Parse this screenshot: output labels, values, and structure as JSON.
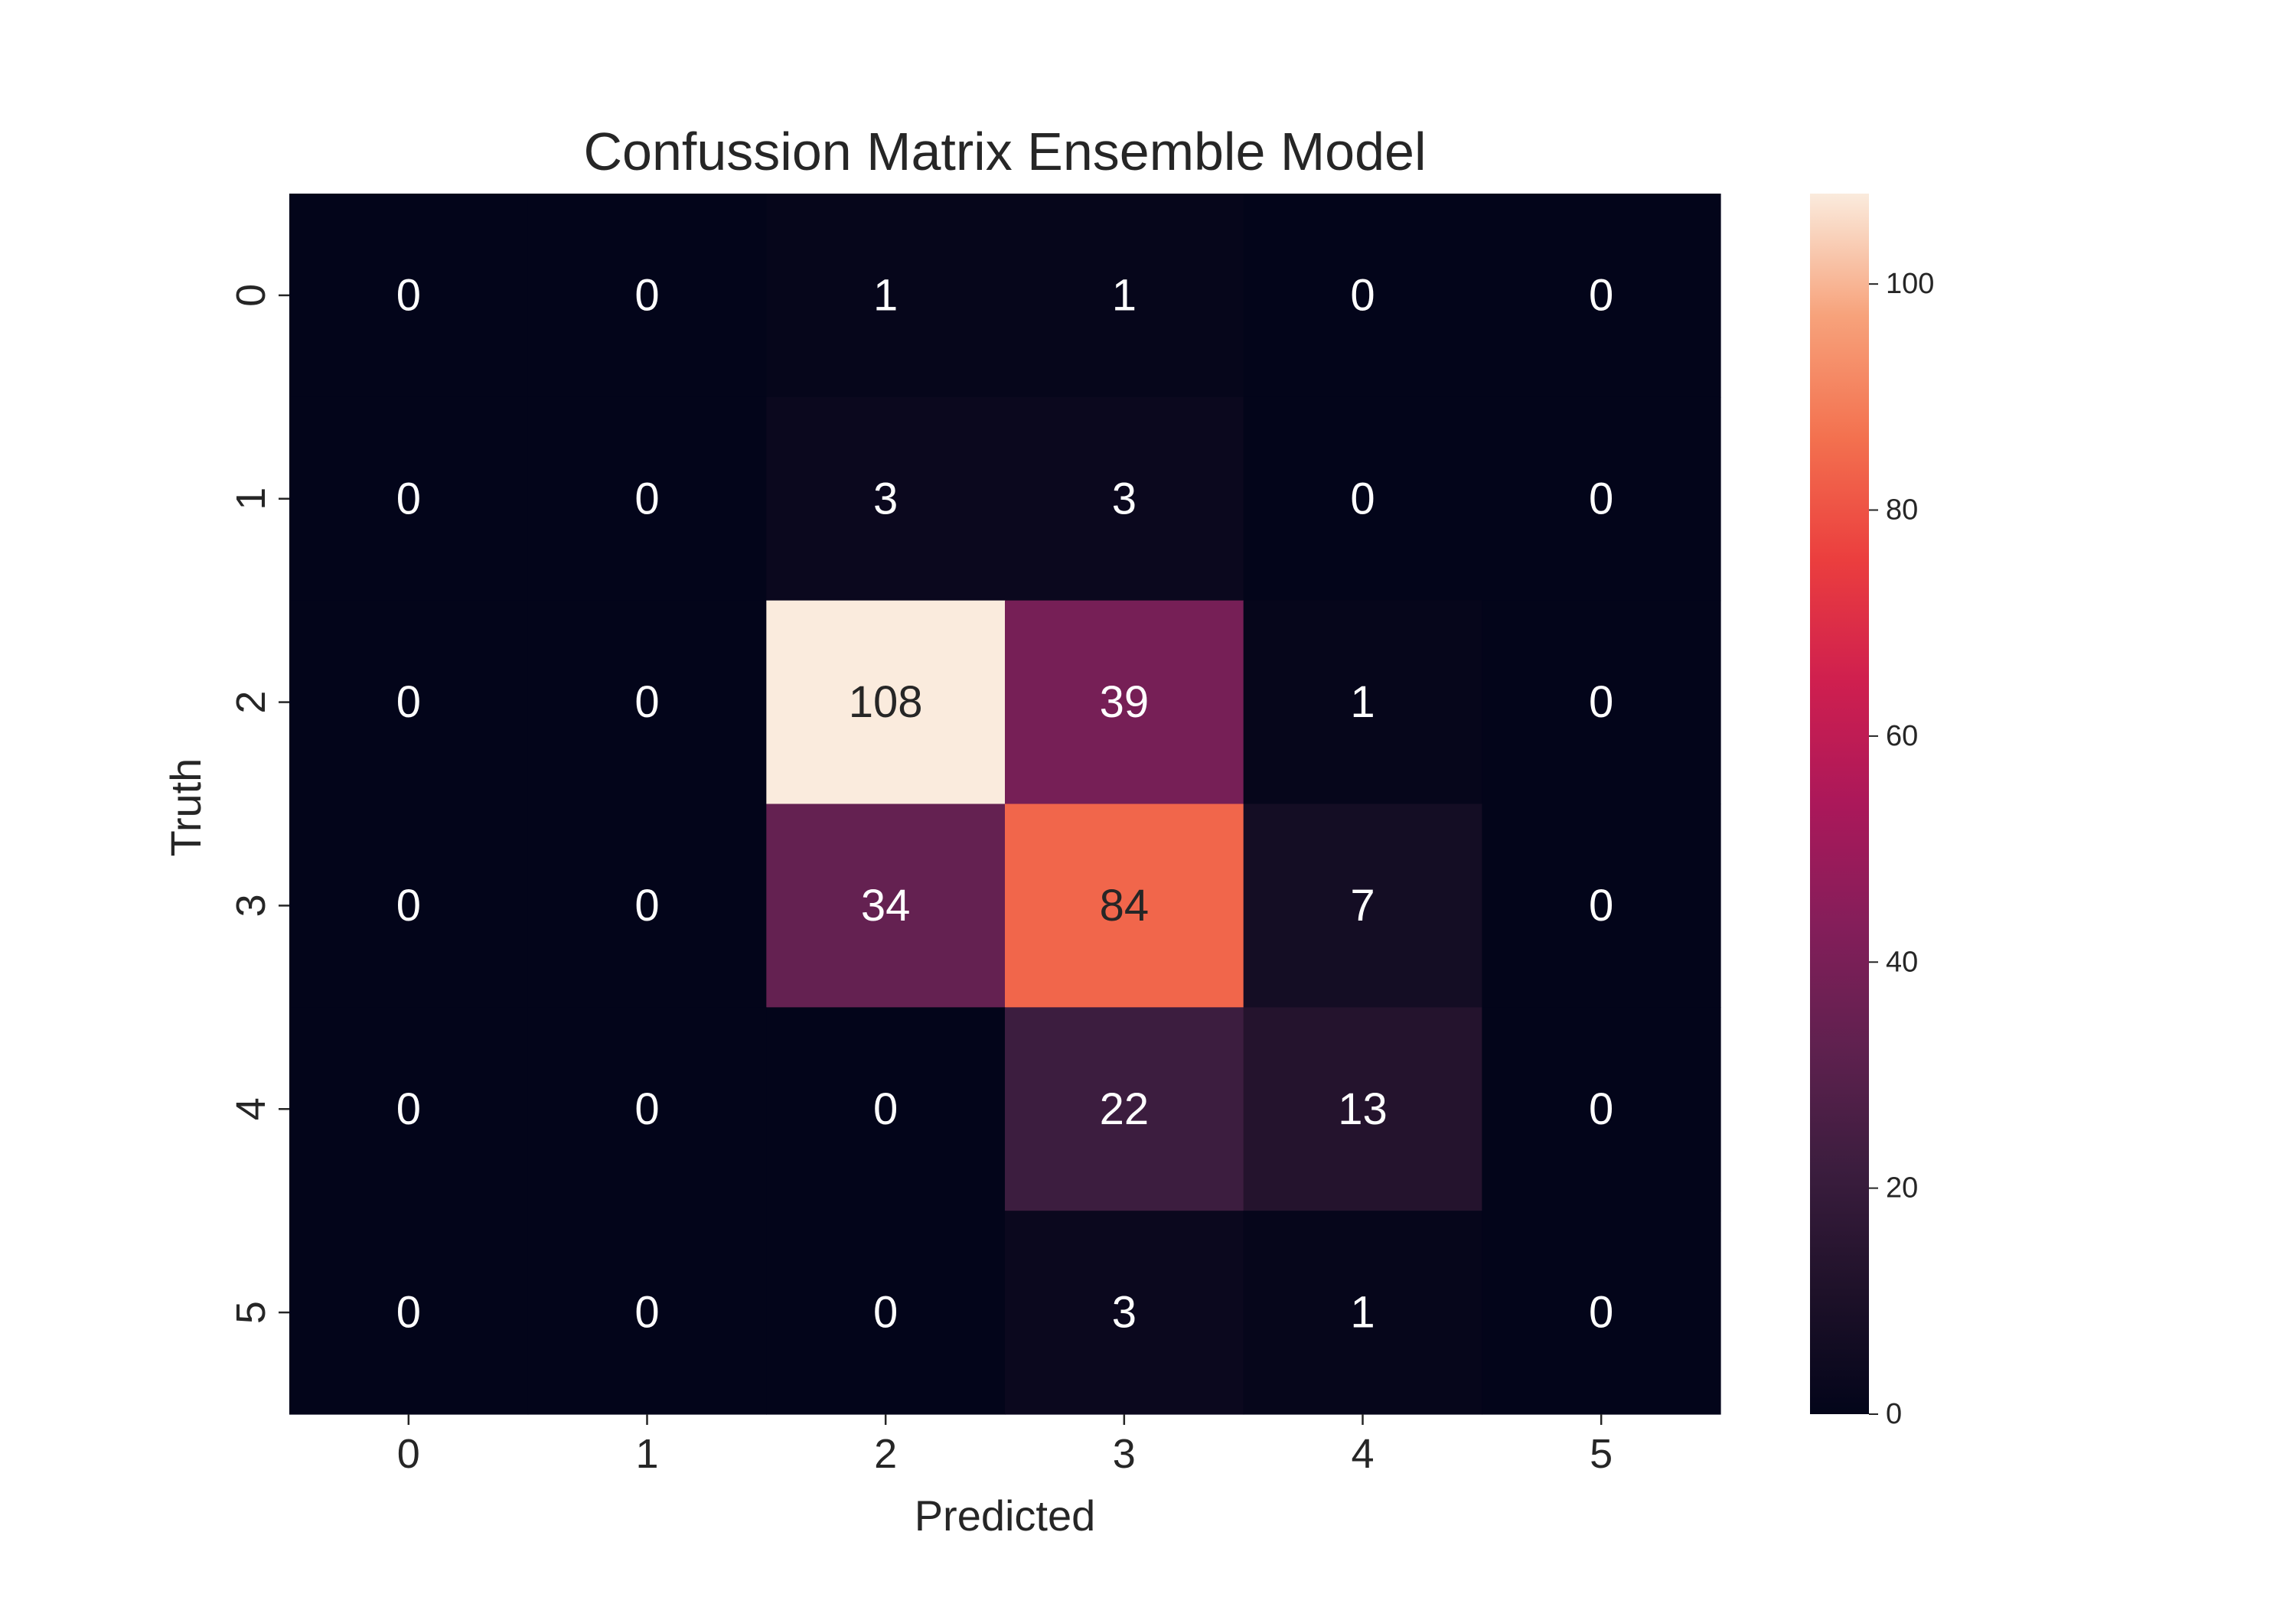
{
  "chart_data": {
    "type": "heatmap",
    "title": "Confussion Matrix Ensemble Model",
    "xlabel": "Predicted",
    "ylabel": "Truth",
    "x_categories": [
      "0",
      "1",
      "2",
      "3",
      "4",
      "5"
    ],
    "y_categories": [
      "0",
      "1",
      "2",
      "3",
      "4",
      "5"
    ],
    "values": [
      [
        0,
        0,
        1,
        1,
        0,
        0
      ],
      [
        0,
        0,
        3,
        3,
        0,
        0
      ],
      [
        0,
        0,
        108,
        39,
        1,
        0
      ],
      [
        0,
        0,
        34,
        84,
        7,
        0
      ],
      [
        0,
        0,
        0,
        22,
        13,
        0
      ],
      [
        0,
        0,
        0,
        3,
        1,
        0
      ]
    ],
    "colorbar": {
      "min": 0,
      "max": 108,
      "ticks": [
        0,
        20,
        40,
        60,
        80,
        100
      ],
      "colormap": "rocket"
    },
    "grid": false
  }
}
